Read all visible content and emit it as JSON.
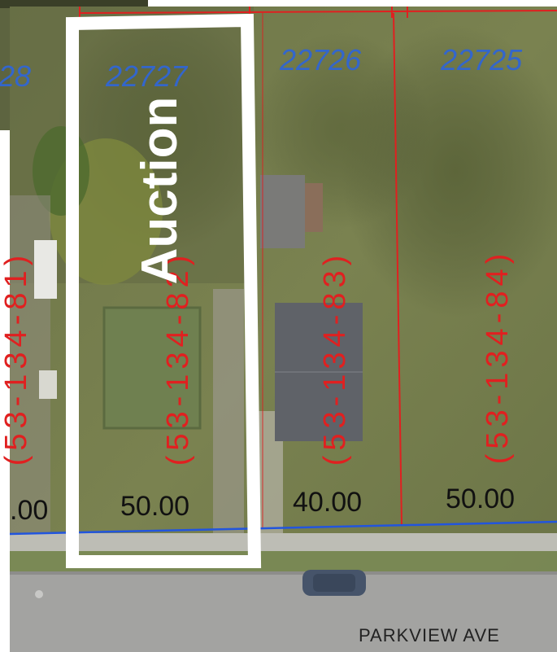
{
  "map": {
    "colors": {
      "parcel_line": "#e02020",
      "lot_number": "#3366cc",
      "right_of_way": "#2255dd",
      "auction_outline": "#ffffff"
    },
    "auction_label": "Auction",
    "street_name": "PARKVIEW AVE",
    "lot_numbers": [
      "28",
      "22727",
      "22726",
      "22725"
    ],
    "parcel_ids": [
      "(53-134-81)",
      "(53-134-82)",
      "(53-134-83)",
      "(53-134-84)"
    ],
    "frontages": [
      ".00",
      "50.00",
      "40.00",
      "50.00"
    ]
  }
}
